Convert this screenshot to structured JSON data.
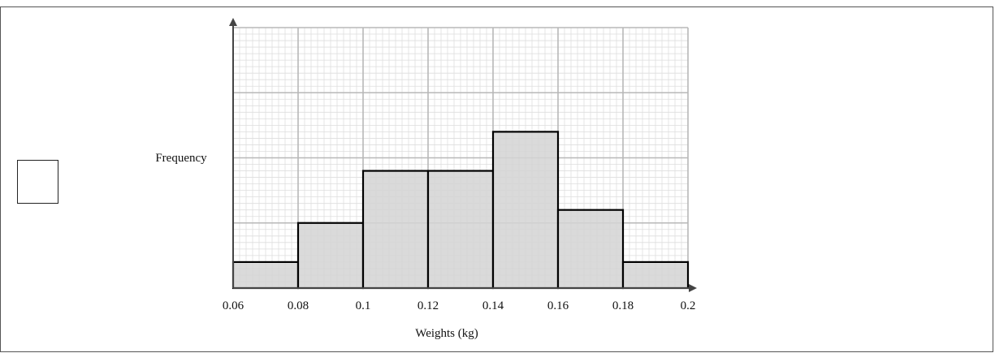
{
  "answer_box": {},
  "chart_data": {
    "type": "bar",
    "title": "",
    "xlabel": "Weights (kg)",
    "ylabel": "Frequency",
    "x_ticks": [
      "0.06",
      "0.08",
      "0.1",
      "0.12",
      "0.14",
      "0.16",
      "0.18",
      "0.2"
    ],
    "xlim": [
      0.06,
      0.2
    ],
    "ylim": [
      0,
      4
    ],
    "y_tick_labels_shown": false,
    "grid": true,
    "bins": [
      {
        "from": 0.06,
        "to": 0.08,
        "value": 0.4
      },
      {
        "from": 0.08,
        "to": 0.1,
        "value": 1.0
      },
      {
        "from": 0.1,
        "to": 0.12,
        "value": 1.8
      },
      {
        "from": 0.12,
        "to": 0.14,
        "value": 1.8
      },
      {
        "from": 0.14,
        "to": 0.16,
        "value": 2.4
      },
      {
        "from": 0.16,
        "to": 0.18,
        "value": 1.2
      },
      {
        "from": 0.18,
        "to": 0.2,
        "value": 0.4
      }
    ],
    "colors": {
      "bar_fill": "#d3d3d3",
      "bar_stroke": "#000000",
      "major_grid": "#b8b8b8",
      "minor_grid": "#dedede",
      "axis": "#444444"
    }
  }
}
